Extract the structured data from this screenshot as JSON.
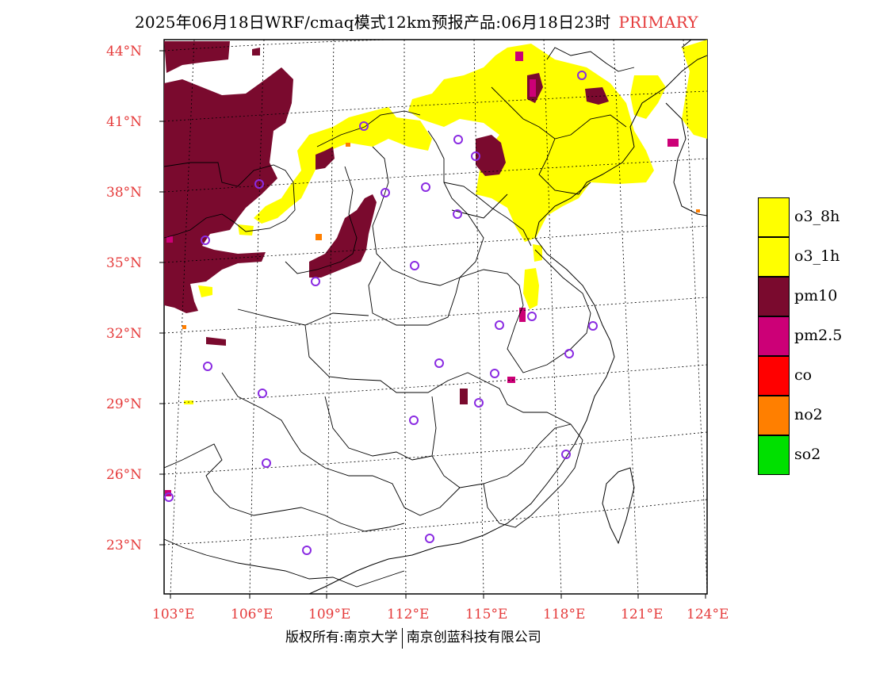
{
  "title": {
    "text": "2025年06月18日WRF/cmaq模式12km预报产品:06月18日23时",
    "flag": "PRIMARY"
  },
  "lat_labels": [
    "44°N",
    "41°N",
    "38°N",
    "35°N",
    "32°N",
    "29°N",
    "26°N",
    "23°N"
  ],
  "lon_labels": [
    "103°E",
    "106°E",
    "109°E",
    "112°E",
    "115°E",
    "118°E",
    "121°E",
    "124°E"
  ],
  "legend": {
    "items": [
      {
        "label": "o3_8h",
        "color": "#ffff00"
      },
      {
        "label": "o3_1h",
        "color": "#ffff00"
      },
      {
        "label": "pm10",
        "color": "#7a0a2e"
      },
      {
        "label": "pm2.5",
        "color": "#cc0077"
      },
      {
        "label": "co",
        "color": "#ff0000"
      },
      {
        "label": "no2",
        "color": "#ff7f00"
      },
      {
        "label": "so2",
        "color": "#00e000"
      }
    ]
  },
  "footer": {
    "left": "版权所有:南京大学",
    "right": "南京创蓝科技有限公司"
  },
  "colors": {
    "accent_red": "#e53b3b",
    "station_marker": "#8a2be2"
  }
}
